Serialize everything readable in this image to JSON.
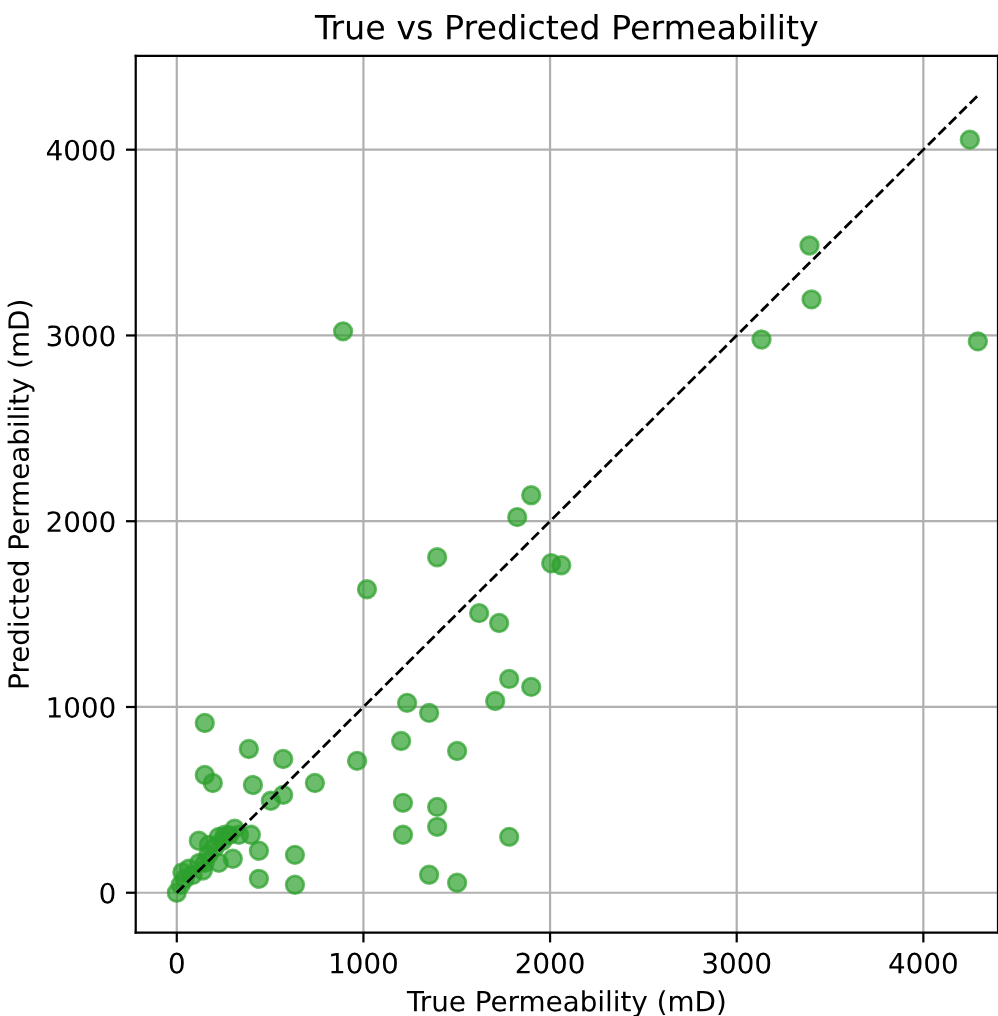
{
  "chart_data": {
    "type": "scatter",
    "title": "True vs Predicted Permeability",
    "xlabel": "True Permeability (mD)",
    "ylabel": "Predicted Permeability (mD)",
    "xlim": [
      -220,
      4400
    ],
    "ylim": [
      -215,
      4505
    ],
    "xticks": [
      0,
      1000,
      2000,
      3000,
      4000
    ],
    "yticks": [
      0,
      1000,
      2000,
      3000,
      4000
    ],
    "grid": true,
    "series": [
      {
        "marker": "circle",
        "color": "#2ca02c",
        "x": [
          0,
          21,
          43,
          64,
          150,
          225,
          118,
          225,
          333,
          397,
          258,
          172,
          440,
          300,
          633,
          440,
          633,
          150,
          386,
          570,
          966,
          150,
          193,
          408,
          740,
          504,
          570,
          891,
          3133,
          4292,
          3401,
          3390,
          4249,
          1899,
          1824,
          1395,
          1019,
          2006,
          2060,
          1620,
          1727,
          1781,
          1899,
          1706,
          1234,
          1352,
          1202,
          1502,
          1212,
          1395,
          1212,
          1395,
          1781,
          1352,
          1502,
          30,
          85,
          120,
          140,
          170,
          205,
          245,
          280,
          310
        ],
        "values": [
          0,
          43,
          75,
          129,
          161,
          161,
          280,
          301,
          312,
          312,
          312,
          258,
          226,
          183,
          204,
          75,
          43,
          914,
          774,
          720,
          710,
          634,
          591,
          580,
          591,
          495,
          527,
          3022,
          2978,
          2968,
          3194,
          3484,
          4054,
          2140,
          2022,
          1806,
          1634,
          1774,
          1763,
          1505,
          1452,
          1151,
          1108,
          1032,
          1022,
          968,
          817,
          763,
          484,
          462,
          312,
          355,
          301,
          97,
          54,
          110,
          95,
          160,
          120,
          205,
          245,
          280,
          310,
          345
        ]
      },
      {
        "type": "line",
        "marker": "none",
        "line_style": "dashed",
        "color": "#000000",
        "x": [
          0,
          4300
        ],
        "values": [
          0,
          4300
        ]
      }
    ]
  }
}
